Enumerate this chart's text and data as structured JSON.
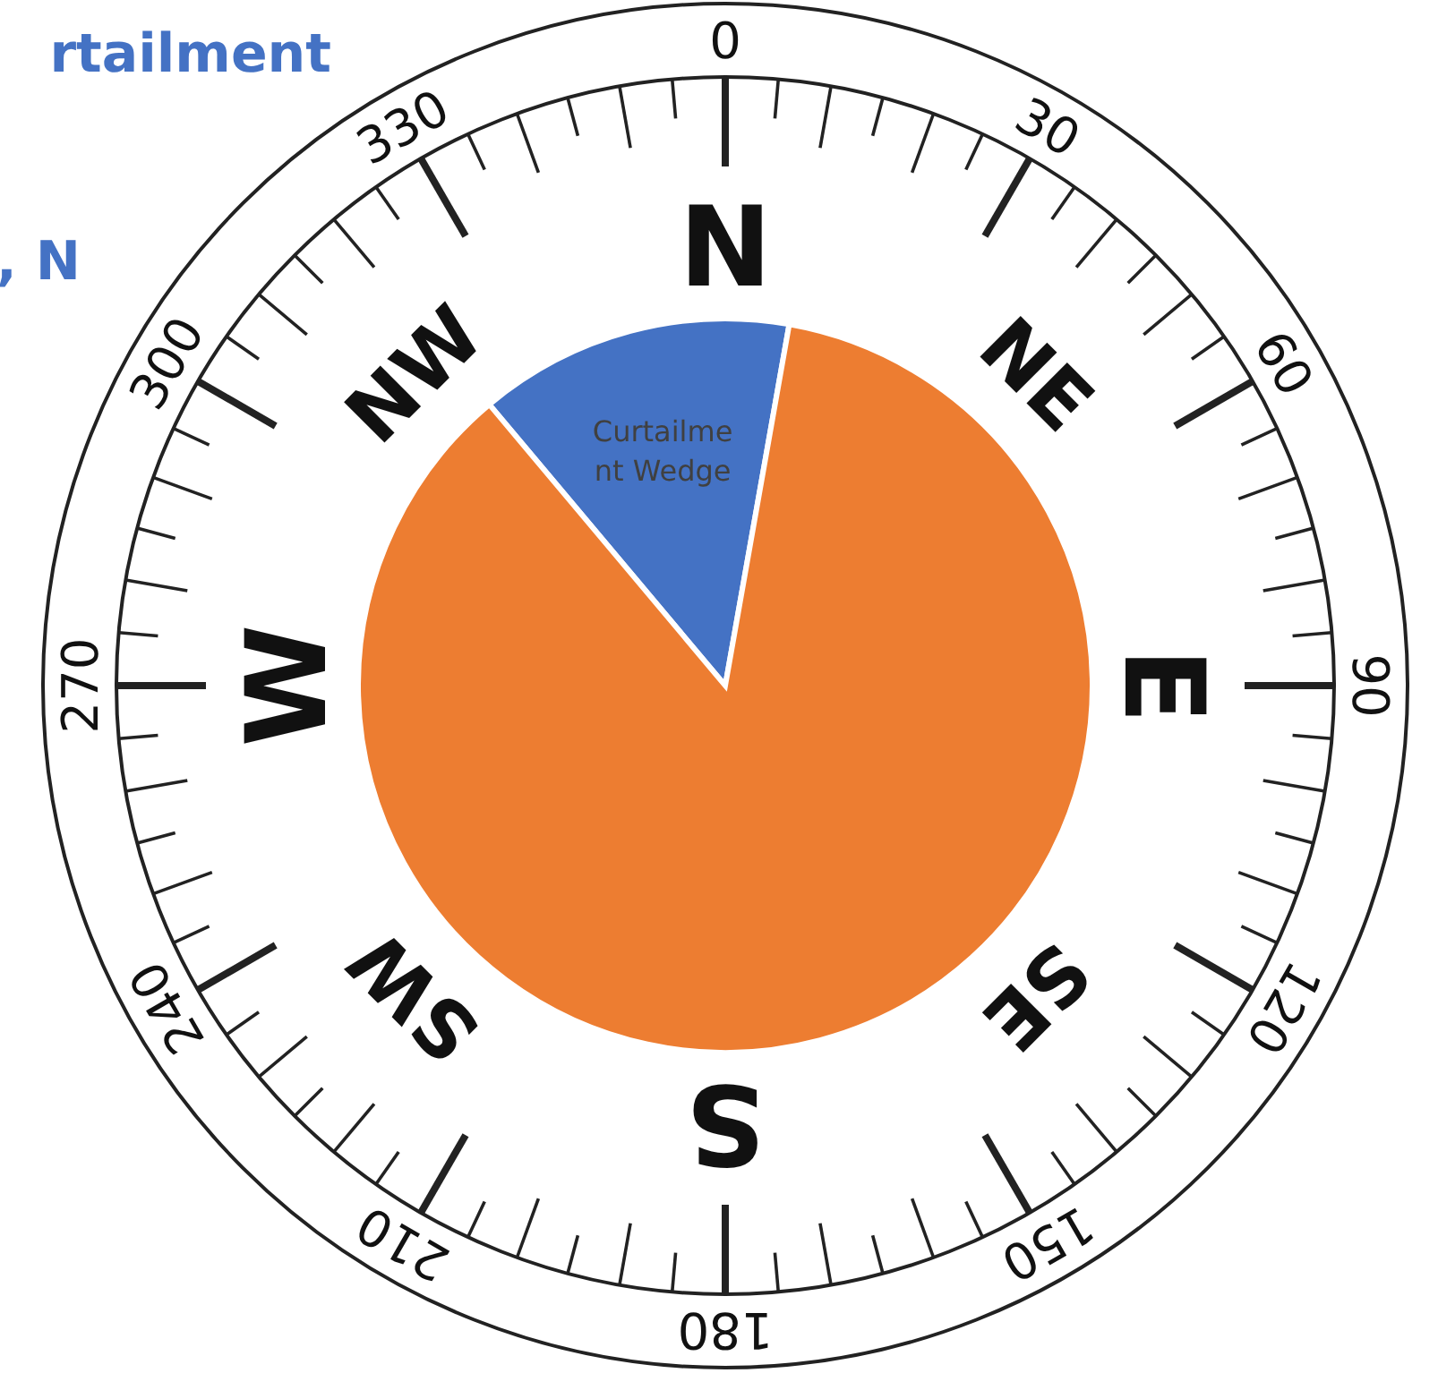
{
  "chart_data": {
    "type": "pie",
    "title": "rtailment",
    "subtitle": ", N",
    "categories": [
      "Curtailment Wedge",
      null
    ],
    "values": [
      13.9,
      86.1
    ],
    "colors": [
      "#4472c4",
      "#ed7d31"
    ],
    "annotations": [
      "0",
      "30",
      "60",
      "90",
      "120",
      "150",
      "180",
      "210",
      "240",
      "270",
      "300",
      "330",
      "N",
      "NE",
      "E",
      "SE",
      "S",
      "SW",
      "W",
      "NW"
    ]
  }
}
